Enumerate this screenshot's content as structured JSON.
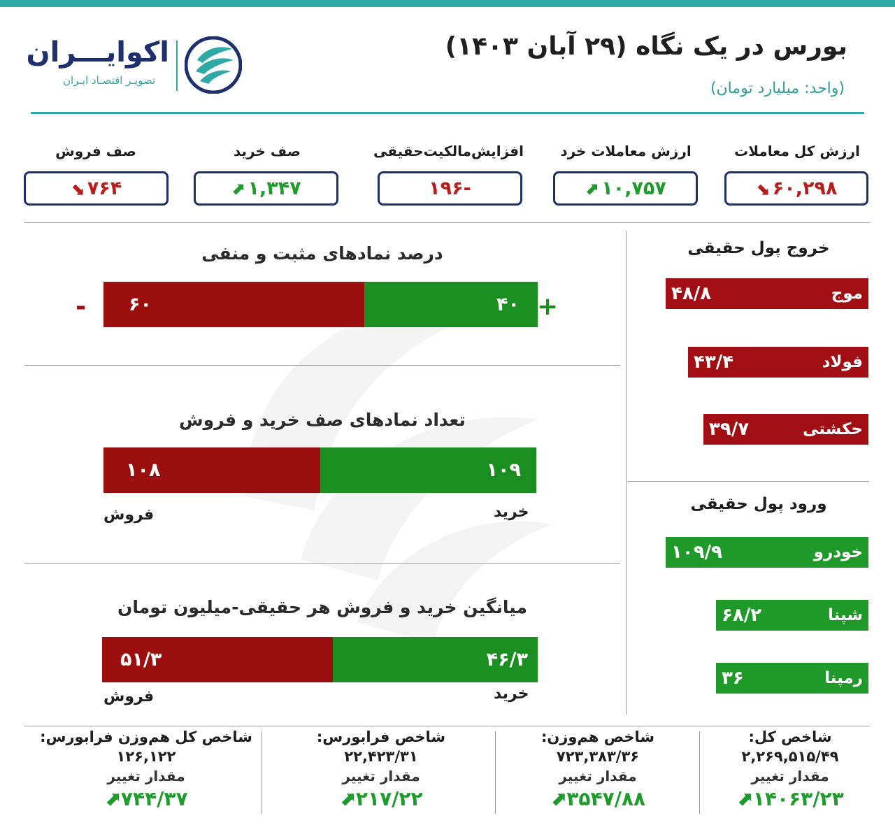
{
  "header": {
    "title": "بورس در یک نگاه (۲۹ آبان ۱۴۰۳)",
    "unit": "(واحد: میلیارد تومان)",
    "brand_name": "اکوایـــران",
    "brand_tagline": "تصویـر اقتصـاد ایـران"
  },
  "kpis": [
    {
      "label": "ارزش کل معاملات",
      "value": "۶۰,۲۹۸",
      "trend": "down"
    },
    {
      "label": "ارزش معاملات خرد",
      "value": "۱۰,۷۵۷",
      "trend": "up"
    },
    {
      "label": "افزایش‌مالکیت‌حقیقی",
      "value": "-۱۹۶",
      "trend": "none"
    },
    {
      "label": "صف خرید",
      "value": "۱,۳۴۷",
      "trend": "up"
    },
    {
      "label": "صف فروش",
      "value": "۷۶۴",
      "trend": "down"
    }
  ],
  "sections": {
    "pos_neg": {
      "title": "درصد نمادهای مثبت و منفی",
      "positive": "۴۰",
      "negative": "۶۰",
      "plus": "+",
      "minus": "-",
      "positive_share": 0.4
    },
    "queues": {
      "title": "تعداد نمادهای صف خرید و فروش",
      "buy": "۱۰۹",
      "sell": "۱۰۸",
      "buy_label": "خرید",
      "sell_label": "فروش",
      "buy_share": 0.5
    },
    "avg": {
      "title": "میانگین خرید و فروش هر حقیقی-میلیون تومان",
      "buy": "۴۶/۳",
      "sell": "۵۱/۳",
      "buy_label": "خرید",
      "sell_label": "فروش",
      "buy_share": 0.47
    }
  },
  "outflow": {
    "title": "خروج پول حقیقی",
    "items": [
      {
        "name": "موج",
        "value": "۴۸/۸",
        "amount": 48.8
      },
      {
        "name": "فولاد",
        "value": "۴۳/۴",
        "amount": 43.4
      },
      {
        "name": "حکشتی",
        "value": "۳۹/۷",
        "amount": 39.7
      }
    ]
  },
  "inflow": {
    "title": "ورود پول حقیقی",
    "items": [
      {
        "name": "خودرو",
        "value": "۱۰۹/۹",
        "amount": 109.9
      },
      {
        "name": "شپنا",
        "value": "۶۸/۲",
        "amount": 68.2
      },
      {
        "name": "رمپنا",
        "value": "۳۶",
        "amount": 36
      }
    ]
  },
  "indices": [
    {
      "title": "شاخص کل:",
      "value": "۲,۲۶۹,۵۱۵/۴۹",
      "change_label": "مقدار تغییر",
      "change": "۱۴۰۶۳/۲۳"
    },
    {
      "title": "شاخص هم‌وزن:",
      "value": "۷۲۳,۳۸۳/۳۶",
      "change_label": "مقدار تغییر",
      "change": "۳۵۴۷/۸۸"
    },
    {
      "title": "شاخص فرابورس:",
      "value": "۲۲,۴۲۳/۳۱",
      "change_label": "مقدار تغییر",
      "change": "۲۱۷/۲۲"
    },
    {
      "title": "شاخص کل هم‌وزن فرابورس:",
      "value": "۱۲۶,۱۲۲",
      "change_label": "مقدار تغییر",
      "change": "۷۴۴/۳۷"
    }
  ],
  "colors": {
    "accent": "#2fa9a5",
    "navy": "#1d2f6f",
    "bar_red": "#9b0f0f",
    "bar_green": "#1b8e22",
    "side_red": "#a10f14",
    "side_green": "#1f9a2a"
  }
}
